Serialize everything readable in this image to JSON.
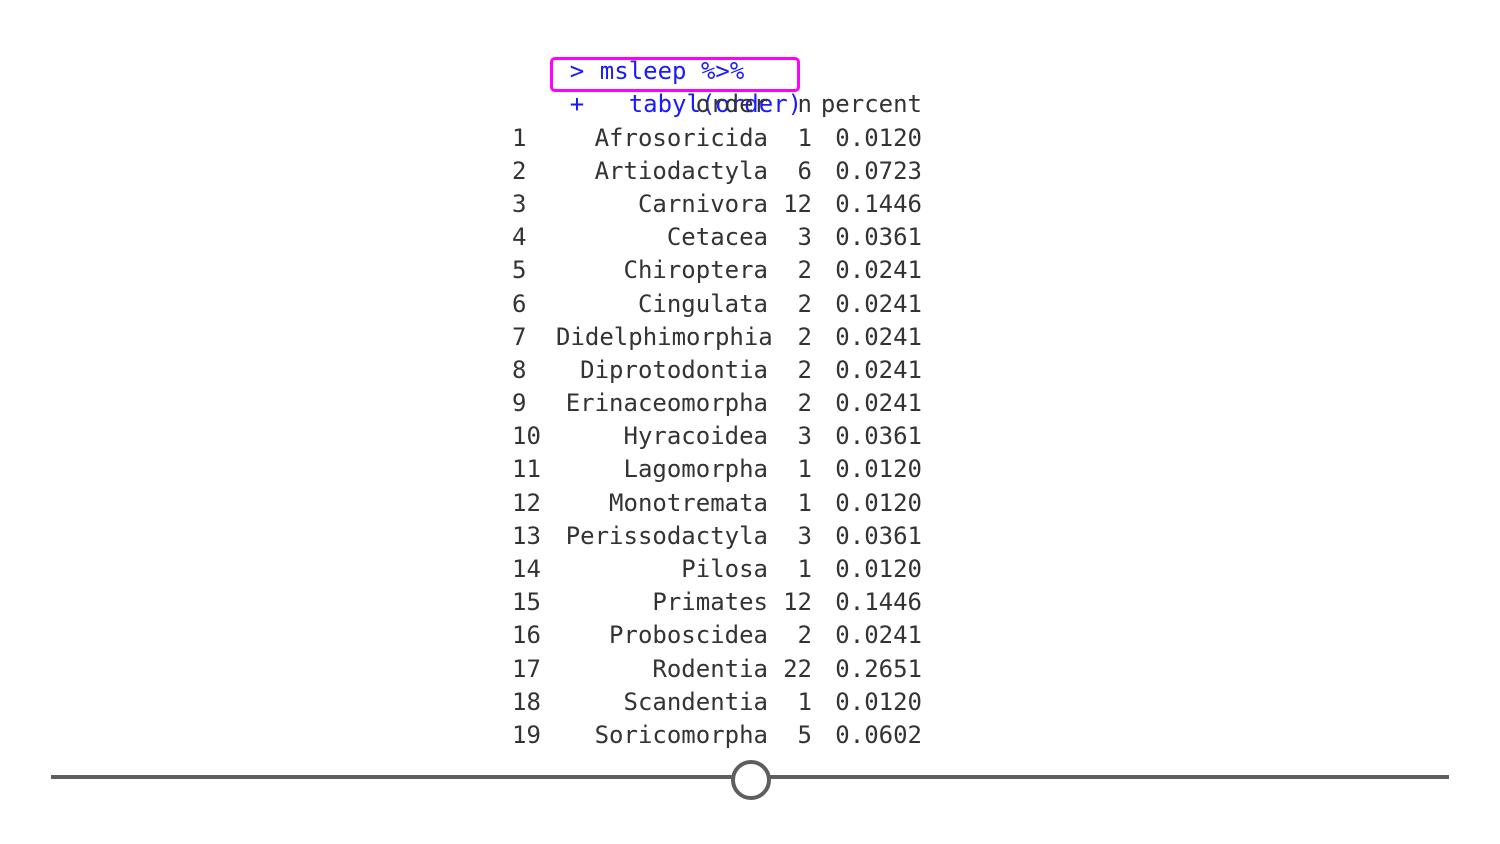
{
  "console": {
    "commands": [
      {
        "prompt": ">",
        "code": "msleep %>%"
      },
      {
        "prompt": "+",
        "code": "  tabyl(order)"
      }
    ],
    "table": {
      "headers": {
        "index": "",
        "order": "order",
        "n": "n",
        "percent": "percent"
      },
      "rows": [
        {
          "index": "1",
          "order": "Afrosoricida",
          "n": "1",
          "percent": "0.0120"
        },
        {
          "index": "2",
          "order": "Artiodactyla",
          "n": "6",
          "percent": "0.0723"
        },
        {
          "index": "3",
          "order": "Carnivora",
          "n": "12",
          "percent": "0.1446"
        },
        {
          "index": "4",
          "order": "Cetacea",
          "n": "3",
          "percent": "0.0361"
        },
        {
          "index": "5",
          "order": "Chiroptera",
          "n": "2",
          "percent": "0.0241"
        },
        {
          "index": "6",
          "order": "Cingulata",
          "n": "2",
          "percent": "0.0241"
        },
        {
          "index": "7",
          "order": "Didelphimorphia",
          "n": "2",
          "percent": "0.0241"
        },
        {
          "index": "8",
          "order": "Diprotodontia",
          "n": "2",
          "percent": "0.0241"
        },
        {
          "index": "9",
          "order": "Erinaceomorpha",
          "n": "2",
          "percent": "0.0241"
        },
        {
          "index": "10",
          "order": "Hyracoidea",
          "n": "3",
          "percent": "0.0361"
        },
        {
          "index": "11",
          "order": "Lagomorpha",
          "n": "1",
          "percent": "0.0120"
        },
        {
          "index": "12",
          "order": "Monotremata",
          "n": "1",
          "percent": "0.0120"
        },
        {
          "index": "13",
          "order": "Perissodactyla",
          "n": "3",
          "percent": "0.0361"
        },
        {
          "index": "14",
          "order": "Pilosa",
          "n": "1",
          "percent": "0.0120"
        },
        {
          "index": "15",
          "order": "Primates",
          "n": "12",
          "percent": "0.1446"
        },
        {
          "index": "16",
          "order": "Proboscidea",
          "n": "2",
          "percent": "0.0241"
        },
        {
          "index": "17",
          "order": "Rodentia",
          "n": "22",
          "percent": "0.2651"
        },
        {
          "index": "18",
          "order": "Scandentia",
          "n": "1",
          "percent": "0.0120"
        },
        {
          "index": "19",
          "order": "Soricomorpha",
          "n": "5",
          "percent": "0.0602"
        }
      ]
    }
  },
  "colors": {
    "command_text": "#1a1aff",
    "output_text": "#333333",
    "highlight": "#ff00ff",
    "slider": "#5e5e5e"
  },
  "slider": {
    "position_fraction": 0.5
  }
}
